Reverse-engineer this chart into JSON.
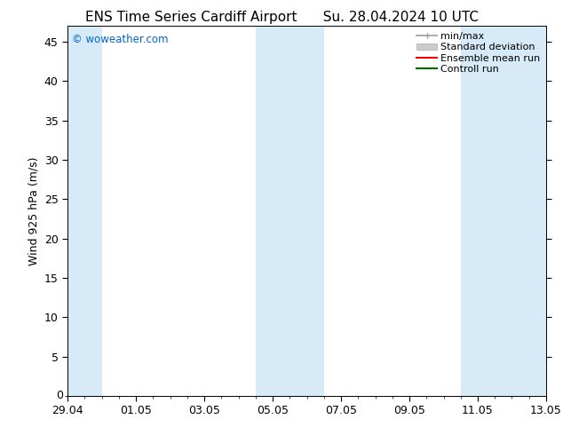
{
  "title_left": "ENS Time Series Cardiff Airport",
  "title_right": "Su. 28.04.2024 10 UTC",
  "ylabel": "Wind 925 hPa (m/s)",
  "watermark": "© woweather.com",
  "watermark_color": "#0066cc",
  "background_color": "#ffffff",
  "plot_bg_color": "#ffffff",
  "ylim": [
    0,
    47
  ],
  "yticks": [
    5,
    10,
    15,
    20,
    25,
    30,
    35,
    40,
    45
  ],
  "ytick_labels": [
    "5",
    "10",
    "15",
    "20",
    "25",
    "30",
    "35",
    "40",
    "45"
  ],
  "x_start": 0,
  "x_end": 336,
  "xtick_labels": [
    "29.04",
    "01.05",
    "03.05",
    "05.05",
    "07.05",
    "09.05",
    "11.05",
    "13.05"
  ],
  "xtick_positions": [
    0,
    48,
    96,
    144,
    192,
    240,
    288,
    336
  ],
  "shaded_bands": [
    {
      "x_start": 0,
      "x_end": 24,
      "color": "#d6eaf8"
    },
    {
      "x_start": 132,
      "x_end": 180,
      "color": "#d6eaf8"
    },
    {
      "x_start": 276,
      "x_end": 336,
      "color": "#d6eaf8"
    }
  ],
  "legend_items": [
    {
      "label": "min/max",
      "color": "#999999",
      "lw": 1.2,
      "style": "minmax"
    },
    {
      "label": "Standard deviation",
      "color": "#cccccc",
      "lw": 5,
      "style": "band"
    },
    {
      "label": "Ensemble mean run",
      "color": "#ff0000",
      "lw": 1.5,
      "style": "line"
    },
    {
      "label": "Controll run",
      "color": "#006600",
      "lw": 1.5,
      "style": "line"
    }
  ],
  "title_fontsize": 11,
  "axis_fontsize": 9,
  "tick_fontsize": 9,
  "legend_fontsize": 8
}
